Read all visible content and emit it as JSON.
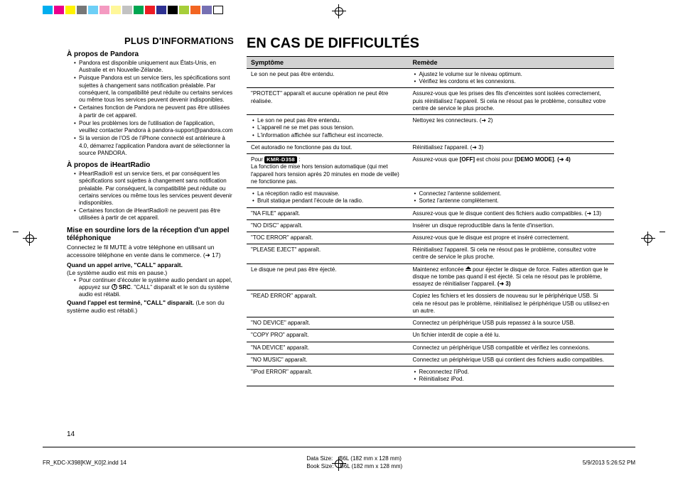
{
  "reg_colors": [
    "#00aeef",
    "#ec008c",
    "#fff200",
    "#777777",
    "#6dcff6",
    "#f49ac1",
    "#fff799",
    "#c2c2c2",
    "#00a651",
    "#ed1c24",
    "#2e3192",
    "#000000",
    "#a6ce39",
    "#f26522",
    "#7670b3",
    "#ffffff"
  ],
  "left": {
    "section_title": "PLUS D'INFORMATIONS",
    "pandora_h": "À propos de Pandora",
    "pandora": [
      "Pandora est disponible uniquement aux États-Unis, en Australie et en Nouvelle-Zélande.",
      "Puisque Pandora est un service tiers, les spécifications sont sujettes à changement sans notification préalable. Par conséquent, la compatibilité peut réduite ou certains services ou même tous les services peuvent devenir indisponibles.",
      "Certaines fonction de Pandora ne peuvent pas être utilisées à partir de cet appareil.",
      "Pour les problèmes lors de l'utilisation de l'application, veuillez contacter Pandora à pandora-support@pandora.com",
      "Si la version de l'OS de l'iPhone connecté est antérieure à 4.0, démarrez l'application Pandora avant de sélectionner la source PANDORA."
    ],
    "iheart_h": "À propos de iHeartRadio",
    "iheart": [
      "iHeartRadio® est un service tiers, et par conséquent les spécifications sont sujettes à changement sans notification préalable. Par conséquent, la compatibilité peut réduite ou certains services ou même tous les services peuvent devenir indisponibles.",
      "Certaines fonction de iHeartRadio® ne peuvent pas être utilisées à partir de cet appareil."
    ],
    "mute_h": "Mise en sourdine lors de la réception d'un appel téléphonique",
    "mute_p": "Connectez le fil MUTE à votre téléphone en utilisant un accessoire téléphone en vente dans le commerce. (➜ 17)",
    "call_arrives_h": "Quand un appel arrive, \"CALL\" apparaît.",
    "call_arrives_p": "(Le système audio est mis en pause.)",
    "call_continue_li_a": "Pour continuer d'écouter le système audio pendant un appel, appuyez sur ",
    "call_continue_li_b": " SRC",
    "call_continue_li_c": ". \"CALL\" disparaît et le son du système audio est rétabli.",
    "call_end_h": "Quand l'appel est terminé, \"CALL\" disparaît.",
    "call_end_p": " (Le son du système audio est rétabli.)"
  },
  "right": {
    "title": "EN CAS DE DIFFICULTÉS",
    "headers": {
      "sym": "Symptôme",
      "rem": "Remède"
    },
    "model_for": "Pour ",
    "model_badge": "KMR-D358",
    "rows": [
      {
        "sym": {
          "type": "text",
          "text": "Le son ne peut pas être entendu."
        },
        "rem": {
          "type": "list",
          "items": [
            "Ajustez le volume sur le niveau optimum.",
            "Vérifiez les cordons et les connexions."
          ]
        }
      },
      {
        "sym": {
          "type": "text",
          "text": "\"PROTECT\" apparaît et aucune opération ne peut être réalisée."
        },
        "rem": {
          "type": "text",
          "text": "Assurez-vous que les prises des fils d'enceintes sont isolées correctement, puis réinitialisez l'appareil. Si cela ne résout pas le problème, consultez votre centre de service le plus proche."
        }
      },
      {
        "sym": {
          "type": "list",
          "items": [
            "Le son ne peut pas être entendu.",
            "L'appareil ne se met pas sous tension.",
            "L'information affichée sur l'afficheur est incorrecte."
          ]
        },
        "rem": {
          "type": "text",
          "text": "Nettoyez les connecteurs. (➜ 2)"
        }
      },
      {
        "sym": {
          "type": "text",
          "text": "Cet autoradio ne fonctionne pas du tout."
        },
        "rem": {
          "type": "text",
          "text": "Réinitialisez l'appareil. (➜ 3)"
        }
      },
      {
        "sym": {
          "type": "model",
          "text": "La fonction de mise hors tension automatique (qui met l'appareil hors tension après 20 minutes en mode de veille) ne fonctionne pas."
        },
        "rem": {
          "type": "html",
          "html": "Assurez-vous que <span class='b'>[OFF]</span> est choisi pour <span class='b'>[DEMO MODE]</span>. <span class='b arrow-ref'>(➜ 4)</span>"
        }
      },
      {
        "sym": {
          "type": "list",
          "items": [
            "La réception radio est mauvaise.",
            "Bruit statique pendant l'écoute de la radio."
          ]
        },
        "rem": {
          "type": "list",
          "items": [
            "Connectez l'antenne solidement.",
            "Sortez l'antenne complètement."
          ]
        }
      },
      {
        "sym": {
          "type": "text",
          "text": "\"NA FILE\" apparaît."
        },
        "rem": {
          "type": "text",
          "text": "Assurez-vous que le disque contient des fichiers audio compatibles. (➜ 13)"
        }
      },
      {
        "sym": {
          "type": "text",
          "text": "\"NO DISC\" apparaît."
        },
        "rem": {
          "type": "text",
          "text": "Insérer un disque reproductible dans la fente d'insertion."
        }
      },
      {
        "sym": {
          "type": "text",
          "text": "\"TOC ERROR\" apparaît."
        },
        "rem": {
          "type": "text",
          "text": "Assurez-vous que le disque est propre et inséré correctement."
        }
      },
      {
        "sym": {
          "type": "text",
          "text": "\"PLEASE EJECT\" apparaît."
        },
        "rem": {
          "type": "text",
          "text": "Réinitialisez l'appareil. Si cela ne résout pas le problème, consultez votre centre de service le plus proche."
        }
      },
      {
        "sym": {
          "type": "text",
          "text": "Le disque ne peut pas être éjecté."
        },
        "rem": {
          "type": "eject",
          "a": "Maintenez enfoncée ",
          "b": " pour éjecter le disque de force. Faites attention que le disque ne tombe pas quand il est éjecté. Si cela ne résout pas le problème, essayez de réinitialiser l'appareil. ",
          "c": "(➜ 3)"
        }
      },
      {
        "sym": {
          "type": "text",
          "text": "\"READ ERROR\" apparaît."
        },
        "rem": {
          "type": "text",
          "text": "Copiez les fichiers et les dossiers de nouveau sur le périphérique USB. Si cela ne résout pas le problème, réinitialisez le périphérique USB ou utilisez-en un autre."
        }
      },
      {
        "sym": {
          "type": "text",
          "text": "\"NO DEVICE\" apparaît."
        },
        "rem": {
          "type": "text",
          "text": "Connectez un périphérique USB puis repassez à la source USB."
        }
      },
      {
        "sym": {
          "type": "text",
          "text": "\"COPY PRO\" apparaît."
        },
        "rem": {
          "type": "text",
          "text": "Un fichier interdit de copie a été lu."
        }
      },
      {
        "sym": {
          "type": "text",
          "text": "\"NA DEVICE\" apparaît."
        },
        "rem": {
          "type": "text",
          "text": "Connectez un périphérique USB compatible et vérifiez les connexions."
        }
      },
      {
        "sym": {
          "type": "text",
          "text": "\"NO MUSIC\" apparaît."
        },
        "rem": {
          "type": "text",
          "text": "Connectez un périphérique USB qui contient des fichiers audio compatibles."
        }
      },
      {
        "sym": {
          "type": "text",
          "text": "\"iPod ERROR\" apparaît."
        },
        "rem": {
          "type": "list",
          "items": [
            "Reconnectez l'iPod.",
            "Réinitialisez iPod."
          ]
        }
      }
    ]
  },
  "page_number": "14",
  "footer": {
    "file": "FR_KDC-X398[KW_K0]2.indd   14",
    "data_size_label": "Data Size:",
    "data_size": "B6L (182 mm x 128 mm)",
    "book_size_label": "Book Size:",
    "book_size": "B6L (182 mm x 128 mm)",
    "timestamp": "5/9/2013   5:26:52 PM"
  }
}
